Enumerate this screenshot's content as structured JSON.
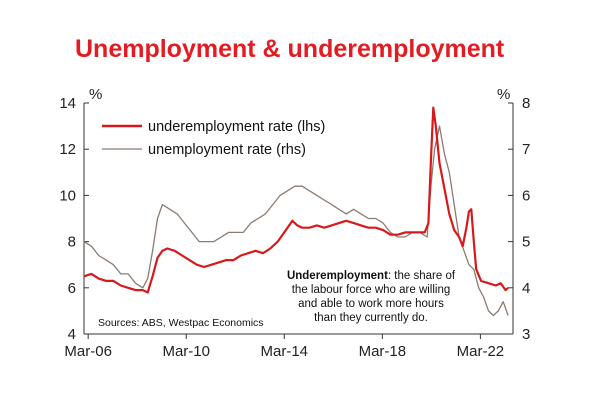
{
  "colors": {
    "title": "#e31b23",
    "underemployment": "#d7191c",
    "unemployment": "#8c7b6f",
    "axis": "#333333"
  },
  "chart_data": {
    "type": "line",
    "title": "Unemployment & underemployment",
    "y_left_unit": "%",
    "y_right_unit": "%",
    "ylim_left": [
      4,
      14
    ],
    "ylim_right": [
      3,
      8
    ],
    "x_range": [
      2006.0,
      2023.5
    ],
    "x_ticks": [
      {
        "label": "Mar-06",
        "x": 2006.17
      },
      {
        "label": "Mar-10",
        "x": 2010.17
      },
      {
        "label": "Mar-14",
        "x": 2014.17
      },
      {
        "label": "Mar-18",
        "x": 2018.17
      },
      {
        "label": "Mar-22",
        "x": 2022.17
      }
    ],
    "y_left_ticks": [
      "4",
      "6",
      "8",
      "10",
      "12",
      "14"
    ],
    "y_right_ticks": [
      "3",
      "4",
      "5",
      "6",
      "7",
      "8"
    ],
    "grid": false,
    "legend_position": "top-left",
    "series": [
      {
        "name": "underemployment rate (lhs)",
        "axis": "left",
        "points": [
          [
            2006.0,
            6.5
          ],
          [
            2006.3,
            6.6
          ],
          [
            2006.6,
            6.4
          ],
          [
            2006.9,
            6.3
          ],
          [
            2007.2,
            6.3
          ],
          [
            2007.5,
            6.1
          ],
          [
            2007.8,
            6.0
          ],
          [
            2008.1,
            5.9
          ],
          [
            2008.4,
            5.9
          ],
          [
            2008.6,
            5.8
          ],
          [
            2008.8,
            6.5
          ],
          [
            2009.0,
            7.3
          ],
          [
            2009.2,
            7.6
          ],
          [
            2009.4,
            7.7
          ],
          [
            2009.7,
            7.6
          ],
          [
            2010.0,
            7.4
          ],
          [
            2010.3,
            7.2
          ],
          [
            2010.6,
            7.0
          ],
          [
            2010.9,
            6.9
          ],
          [
            2011.2,
            7.0
          ],
          [
            2011.5,
            7.1
          ],
          [
            2011.8,
            7.2
          ],
          [
            2012.1,
            7.2
          ],
          [
            2012.4,
            7.4
          ],
          [
            2012.7,
            7.5
          ],
          [
            2013.0,
            7.6
          ],
          [
            2013.3,
            7.5
          ],
          [
            2013.6,
            7.7
          ],
          [
            2013.9,
            8.0
          ],
          [
            2014.1,
            8.3
          ],
          [
            2014.3,
            8.6
          ],
          [
            2014.5,
            8.9
          ],
          [
            2014.7,
            8.7
          ],
          [
            2014.9,
            8.6
          ],
          [
            2015.2,
            8.6
          ],
          [
            2015.5,
            8.7
          ],
          [
            2015.8,
            8.6
          ],
          [
            2016.1,
            8.7
          ],
          [
            2016.4,
            8.8
          ],
          [
            2016.7,
            8.9
          ],
          [
            2017.0,
            8.8
          ],
          [
            2017.3,
            8.7
          ],
          [
            2017.6,
            8.6
          ],
          [
            2017.9,
            8.6
          ],
          [
            2018.2,
            8.5
          ],
          [
            2018.5,
            8.3
          ],
          [
            2018.8,
            8.3
          ],
          [
            2019.1,
            8.4
          ],
          [
            2019.4,
            8.4
          ],
          [
            2019.7,
            8.4
          ],
          [
            2019.9,
            8.4
          ],
          [
            2020.05,
            8.8
          ],
          [
            2020.15,
            11.5
          ],
          [
            2020.25,
            13.8
          ],
          [
            2020.35,
            13.0
          ],
          [
            2020.5,
            11.4
          ],
          [
            2020.7,
            10.3
          ],
          [
            2020.9,
            9.2
          ],
          [
            2021.1,
            8.5
          ],
          [
            2021.3,
            8.2
          ],
          [
            2021.45,
            7.8
          ],
          [
            2021.6,
            8.6
          ],
          [
            2021.7,
            9.3
          ],
          [
            2021.8,
            9.4
          ],
          [
            2021.9,
            8.0
          ],
          [
            2022.0,
            6.8
          ],
          [
            2022.2,
            6.3
          ],
          [
            2022.5,
            6.2
          ],
          [
            2022.8,
            6.1
          ],
          [
            2023.0,
            6.2
          ],
          [
            2023.2,
            5.9
          ],
          [
            2023.3,
            6.0
          ]
        ]
      },
      {
        "name": "unemployment rate (rhs)",
        "axis": "right",
        "points": [
          [
            2006.0,
            5.0
          ],
          [
            2006.3,
            4.9
          ],
          [
            2006.6,
            4.7
          ],
          [
            2006.9,
            4.6
          ],
          [
            2007.2,
            4.5
          ],
          [
            2007.5,
            4.3
          ],
          [
            2007.8,
            4.3
          ],
          [
            2008.1,
            4.1
          ],
          [
            2008.4,
            4.0
          ],
          [
            2008.6,
            4.2
          ],
          [
            2008.8,
            4.8
          ],
          [
            2009.0,
            5.5
          ],
          [
            2009.2,
            5.8
          ],
          [
            2009.5,
            5.7
          ],
          [
            2009.8,
            5.6
          ],
          [
            2010.1,
            5.4
          ],
          [
            2010.4,
            5.2
          ],
          [
            2010.7,
            5.0
          ],
          [
            2011.0,
            5.0
          ],
          [
            2011.3,
            5.0
          ],
          [
            2011.6,
            5.1
          ],
          [
            2011.9,
            5.2
          ],
          [
            2012.2,
            5.2
          ],
          [
            2012.5,
            5.2
          ],
          [
            2012.8,
            5.4
          ],
          [
            2013.1,
            5.5
          ],
          [
            2013.4,
            5.6
          ],
          [
            2013.7,
            5.8
          ],
          [
            2014.0,
            6.0
          ],
          [
            2014.3,
            6.1
          ],
          [
            2014.6,
            6.2
          ],
          [
            2014.9,
            6.2
          ],
          [
            2015.2,
            6.1
          ],
          [
            2015.5,
            6.0
          ],
          [
            2015.8,
            5.9
          ],
          [
            2016.1,
            5.8
          ],
          [
            2016.4,
            5.7
          ],
          [
            2016.7,
            5.6
          ],
          [
            2017.0,
            5.7
          ],
          [
            2017.3,
            5.6
          ],
          [
            2017.6,
            5.5
          ],
          [
            2017.9,
            5.5
          ],
          [
            2018.2,
            5.4
          ],
          [
            2018.5,
            5.2
          ],
          [
            2018.8,
            5.1
          ],
          [
            2019.1,
            5.1
          ],
          [
            2019.4,
            5.2
          ],
          [
            2019.7,
            5.2
          ],
          [
            2020.0,
            5.1
          ],
          [
            2020.15,
            6.2
          ],
          [
            2020.3,
            7.0
          ],
          [
            2020.5,
            7.5
          ],
          [
            2020.7,
            6.9
          ],
          [
            2020.9,
            6.5
          ],
          [
            2021.1,
            5.8
          ],
          [
            2021.3,
            5.1
          ],
          [
            2021.5,
            4.8
          ],
          [
            2021.7,
            4.5
          ],
          [
            2021.9,
            4.4
          ],
          [
            2022.1,
            4.0
          ],
          [
            2022.3,
            3.8
          ],
          [
            2022.5,
            3.5
          ],
          [
            2022.7,
            3.4
          ],
          [
            2022.9,
            3.5
          ],
          [
            2023.1,
            3.7
          ],
          [
            2023.3,
            3.4
          ]
        ]
      }
    ],
    "annotation": {
      "bold": "Underemployment",
      "lines": [
        ": the share of",
        "the labour force who are willing",
        "and able to work more hours",
        "than they currently do."
      ]
    },
    "source": "Sources: ABS, Westpac Economics"
  }
}
